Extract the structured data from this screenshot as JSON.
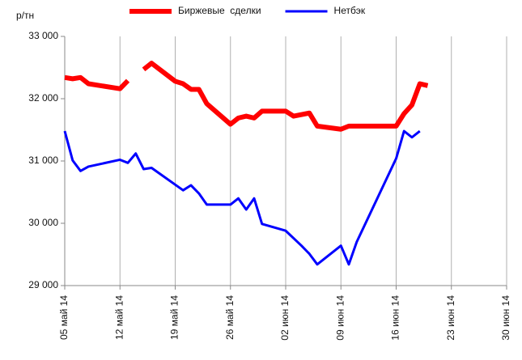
{
  "chart_data": {
    "type": "line",
    "y_label": "р/тн",
    "xlim": [
      "2014-05-05",
      "2014-06-30"
    ],
    "xticks": [
      {
        "value": "2014-05-05",
        "label": "05 май 14"
      },
      {
        "value": "2014-05-12",
        "label": "12 май 14"
      },
      {
        "value": "2014-05-19",
        "label": "19 май 14"
      },
      {
        "value": "2014-05-26",
        "label": "26 май 14"
      },
      {
        "value": "2014-06-02",
        "label": "02 июн 14"
      },
      {
        "value": "2014-06-09",
        "label": "09 июн 14"
      },
      {
        "value": "2014-06-16",
        "label": "16 июн 14"
      },
      {
        "value": "2014-06-23",
        "label": "23 июн 14"
      },
      {
        "value": "2014-06-30",
        "label": "30 июн 14"
      }
    ],
    "ylim": [
      29000,
      33000
    ],
    "yticks": [
      {
        "value": 29000,
        "label": "29 000"
      },
      {
        "value": 30000,
        "label": "30 000"
      },
      {
        "value": 31000,
        "label": "31 000"
      },
      {
        "value": 32000,
        "label": "32 000"
      },
      {
        "value": 33000,
        "label": "33 000"
      }
    ],
    "grid": "x",
    "legend": "top",
    "series": [
      {
        "name": "Биржевые  сделки",
        "color": "#ff0000",
        "width": 6,
        "x": [
          "2014-05-05",
          "2014-05-06",
          "2014-05-07",
          "2014-05-08",
          "2014-05-12",
          "2014-05-13",
          "2014-05-14",
          "2014-05-15",
          "2014-05-16",
          "2014-05-19",
          "2014-05-20",
          "2014-05-21",
          "2014-05-22",
          "2014-05-23",
          "2014-05-26",
          "2014-05-27",
          "2014-05-28",
          "2014-05-29",
          "2014-05-30",
          "2014-06-02",
          "2014-06-03",
          "2014-06-05",
          "2014-06-06",
          "2014-06-09",
          "2014-06-10",
          "2014-06-16",
          "2014-06-17",
          "2014-06-18",
          "2014-06-19",
          "2014-06-20"
        ],
        "values": [
          32340,
          32320,
          32340,
          32240,
          32160,
          32290,
          null,
          32470,
          32570,
          32280,
          32240,
          32150,
          32150,
          31920,
          31590,
          31690,
          31720,
          31690,
          31800,
          31800,
          31720,
          31770,
          31560,
          31510,
          31560,
          31560,
          31760,
          31900,
          32240,
          32210
        ]
      },
      {
        "name": "Нетбэк",
        "color": "#0000ff",
        "width": 3,
        "x": [
          "2014-05-05",
          "2014-05-06",
          "2014-05-07",
          "2014-05-08",
          "2014-05-12",
          "2014-05-13",
          "2014-05-14",
          "2014-05-15",
          "2014-05-16",
          "2014-05-20",
          "2014-05-21",
          "2014-05-22",
          "2014-05-23",
          "2014-05-26",
          "2014-05-27",
          "2014-05-28",
          "2014-05-29",
          "2014-05-30",
          "2014-06-02",
          "2014-06-04",
          "2014-06-05",
          "2014-06-06",
          "2014-06-09",
          "2014-06-10",
          "2014-06-11",
          "2014-06-16",
          "2014-06-17",
          "2014-06-18",
          "2014-06-19"
        ],
        "values": [
          31480,
          31010,
          30840,
          30910,
          31020,
          30970,
          31120,
          30870,
          30890,
          30530,
          30610,
          30480,
          30300,
          30300,
          30400,
          30220,
          30400,
          29990,
          29880,
          29640,
          29510,
          29340,
          29640,
          29340,
          29700,
          31040,
          31480,
          31380,
          31480
        ]
      }
    ]
  }
}
